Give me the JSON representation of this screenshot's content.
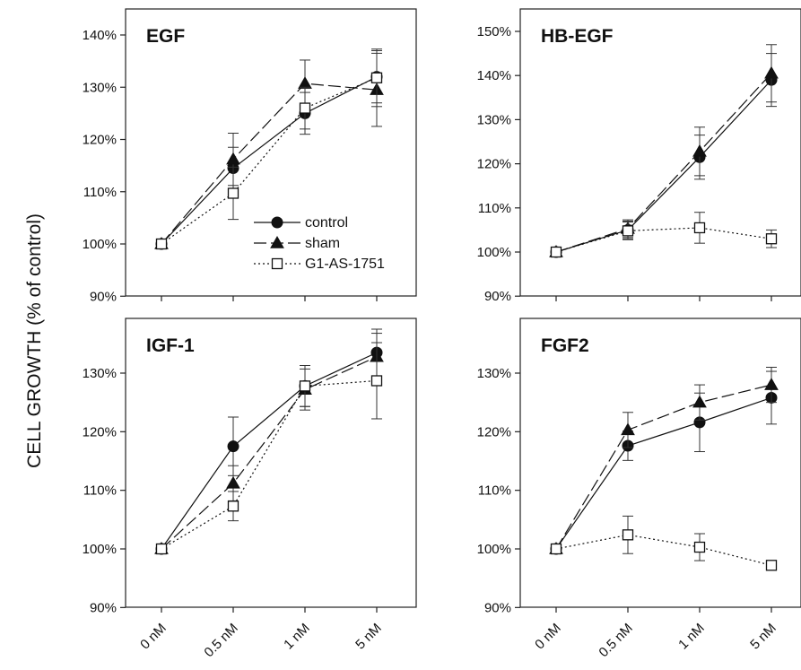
{
  "figure": {
    "ylabel": "CELL GROWTH (% of control)"
  },
  "legend": {
    "items": [
      {
        "label": "control",
        "series": "control"
      },
      {
        "label": "sham",
        "series": "sham"
      },
      {
        "label": "G1-AS-1751",
        "series": "g1"
      }
    ]
  },
  "series_styles": {
    "control": {
      "marker": "circle",
      "dash": "solid",
      "color": "#111111"
    },
    "sham": {
      "marker": "triangle",
      "dash": "longdash",
      "color": "#111111"
    },
    "g1": {
      "marker": "square-open",
      "dash": "dotted",
      "color": "#111111"
    }
  },
  "chart_data": [
    {
      "type": "line",
      "title": "EGF",
      "categories": [
        "0 nM",
        "0.5 nM",
        "1 nM",
        "5 nM"
      ],
      "ylim": [
        90,
        140
      ],
      "yticks": [
        90,
        100,
        110,
        120,
        130,
        140
      ],
      "ytick_labels": [
        "90%",
        "100%",
        "110%",
        "120%",
        "130%",
        "140%"
      ],
      "show_xtick_labels": false,
      "series": [
        {
          "name": "control",
          "values": [
            100,
            114.5,
            125,
            132
          ],
          "errors": [
            0,
            4,
            4,
            5
          ]
        },
        {
          "name": "sham",
          "values": [
            100,
            116.2,
            130.7,
            129.5
          ],
          "errors": [
            0,
            5,
            4.5,
            7
          ]
        },
        {
          "name": "G1-AS-1751",
          "values": [
            100,
            109.7,
            126,
            131.8
          ],
          "errors": [
            0,
            5,
            4,
            5.5
          ]
        }
      ]
    },
    {
      "type": "line",
      "title": "HB-EGF",
      "categories": [
        "0 nM",
        "0.5 nM",
        "1 nM",
        "5 nM"
      ],
      "ylim": [
        90,
        150
      ],
      "yticks": [
        90,
        100,
        110,
        120,
        130,
        140,
        150
      ],
      "ytick_labels": [
        "90%",
        "100%",
        "110%",
        "120%",
        "130%",
        "140%",
        "150%"
      ],
      "show_xtick_labels": false,
      "series": [
        {
          "name": "control",
          "values": [
            100,
            105,
            121.5,
            139
          ],
          "errors": [
            0,
            2,
            5,
            6
          ]
        },
        {
          "name": "sham",
          "values": [
            100,
            105.3,
            122.8,
            140.5
          ],
          "errors": [
            0,
            2,
            5.5,
            6.5
          ]
        },
        {
          "name": "G1-AS-1751",
          "values": [
            100,
            104.8,
            105.5,
            103
          ],
          "errors": [
            0,
            2,
            3.5,
            2
          ]
        }
      ]
    },
    {
      "type": "line",
      "title": "IGF-1",
      "categories": [
        "0 nM",
        "0.5 nM",
        "1 nM",
        "5 nM"
      ],
      "ylim": [
        90,
        135
      ],
      "yticks": [
        90,
        100,
        110,
        120,
        130
      ],
      "ytick_labels": [
        "90%",
        "100%",
        "110%",
        "120%",
        "130%"
      ],
      "show_xtick_labels": true,
      "series": [
        {
          "name": "control",
          "values": [
            100,
            117.5,
            127.8,
            133.5
          ],
          "errors": [
            0,
            5,
            3.5,
            4
          ]
        },
        {
          "name": "sham",
          "values": [
            100,
            111.2,
            127.2,
            132.8
          ],
          "errors": [
            0,
            3,
            3.5,
            4
          ]
        },
        {
          "name": "G1-AS-1751",
          "values": [
            100,
            107.3,
            127.8,
            128.7
          ],
          "errors": [
            0,
            2.5,
            3.5,
            6.5
          ]
        }
      ]
    },
    {
      "type": "line",
      "title": "FGF2",
      "categories": [
        "0 nM",
        "0.5 nM",
        "1 nM",
        "5 nM"
      ],
      "ylim": [
        90,
        135
      ],
      "yticks": [
        90,
        100,
        110,
        120,
        130
      ],
      "ytick_labels": [
        "90%",
        "100%",
        "110%",
        "120%",
        "130%"
      ],
      "show_xtick_labels": true,
      "series": [
        {
          "name": "control",
          "values": [
            100,
            117.6,
            121.6,
            125.8
          ],
          "errors": [
            0,
            2.5,
            5,
            4.5
          ]
        },
        {
          "name": "sham",
          "values": [
            100,
            120.3,
            125,
            128
          ],
          "errors": [
            0,
            3,
            3,
            3
          ]
        },
        {
          "name": "G1-AS-1751",
          "values": [
            100,
            102.4,
            100.3,
            97.2
          ],
          "errors": [
            0,
            3.2,
            2.3,
            0
          ]
        }
      ]
    }
  ]
}
